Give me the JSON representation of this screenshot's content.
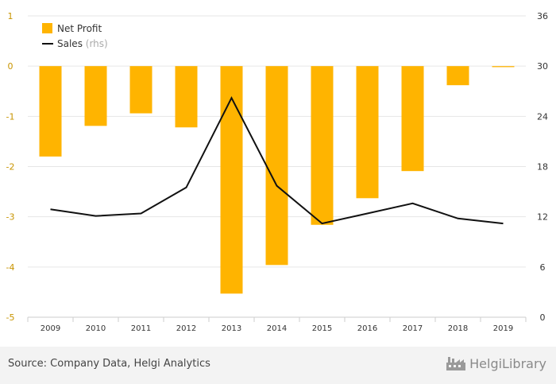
{
  "chart_data": {
    "type": "bar",
    "categories": [
      "2009",
      "2010",
      "2011",
      "2012",
      "2013",
      "2014",
      "2015",
      "2016",
      "2017",
      "2018",
      "2019"
    ],
    "series": [
      {
        "name": "Net Profit",
        "type": "bar",
        "axis": "left",
        "values": [
          -1.8,
          -1.19,
          -0.94,
          -1.22,
          -4.53,
          -3.96,
          -3.16,
          -2.63,
          -2.09,
          -0.38,
          -0.02
        ]
      },
      {
        "name": "Sales",
        "name_suffix": "(rhs)",
        "type": "line",
        "axis": "right",
        "values": [
          12.9,
          12.1,
          12.4,
          15.5,
          26.2,
          15.7,
          11.2,
          12.4,
          13.6,
          11.8,
          11.2
        ]
      }
    ],
    "left_axis": {
      "min": -5,
      "max": 1,
      "ticks": [
        1,
        0,
        -1,
        -2,
        -3,
        -4,
        -5
      ]
    },
    "right_axis": {
      "min": 0,
      "max": 36,
      "ticks": [
        36,
        30,
        24,
        18,
        12,
        6,
        0
      ]
    },
    "legend_position": "top-left",
    "grid": true,
    "colors": {
      "bar": "#ffb400",
      "line": "#111111",
      "left_ticks": "#c89400",
      "grid": "#e6e6e6"
    }
  },
  "footer": {
    "source": "Source: Company Data, Helgi Analytics",
    "brand": "HelgiLibrary"
  },
  "icons": {
    "brand": "factory-icon"
  }
}
